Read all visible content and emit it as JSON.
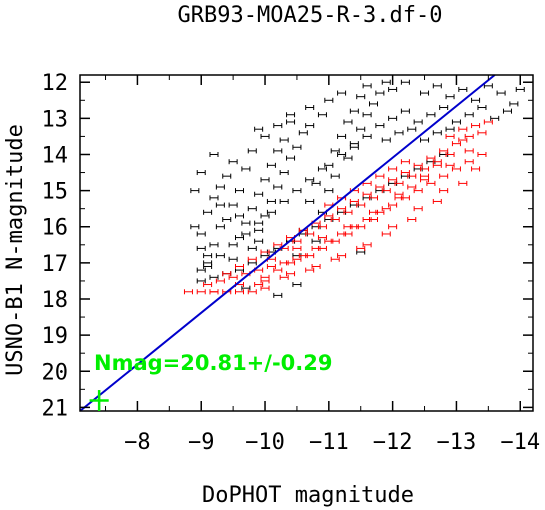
{
  "chart_data": {
    "type": "scatter",
    "title": "GRB93-MOA25-R-3.df-0",
    "xlabel": "DoPHOT magnitude",
    "ylabel": "USNO-B1 N-magnitude",
    "xlim": [
      -7.1,
      -14.2
    ],
    "ylim": [
      21.1,
      11.8
    ],
    "x_ticks": [
      -8,
      -9,
      -10,
      -11,
      -12,
      -13,
      -14
    ],
    "x_tick_labels": [
      "−8",
      "−9",
      "−10",
      "−11",
      "−12",
      "−13",
      "−14"
    ],
    "y_ticks": [
      12,
      13,
      14,
      15,
      16,
      17,
      18,
      19,
      20,
      21
    ],
    "y_tick_labels": [
      "12",
      "13",
      "14",
      "15",
      "16",
      "17",
      "18",
      "19",
      "20",
      "21"
    ],
    "grid": false,
    "colors": {
      "all_stars": "#000000",
      "fit_stars": "#ff0000",
      "fit_line": "#0000cc",
      "result": "#00ee00"
    },
    "fit_line": {
      "offset": 20.81,
      "x": [
        -7.1,
        -13.6
      ],
      "y": [
        21.1,
        11.8
      ]
    },
    "annotation": "Nmag=20.81+/-0.29",
    "result_point": {
      "x": -7.4,
      "y": 20.81,
      "yerr": 0.29,
      "xerr": 0.15
    },
    "series": [
      {
        "color": "#000000",
        "points": [
          [
            -9.0,
            17.2
          ],
          [
            -9.1,
            16.8
          ],
          [
            -9.2,
            16.5
          ],
          [
            -9.0,
            16.2
          ],
          [
            -9.3,
            16.0
          ],
          [
            -9.1,
            15.6
          ],
          [
            -9.4,
            15.8
          ],
          [
            -9.2,
            15.2
          ],
          [
            -9.5,
            15.4
          ],
          [
            -9.3,
            14.9
          ],
          [
            -9.6,
            15.0
          ],
          [
            -9.4,
            14.6
          ],
          [
            -9.7,
            14.4
          ],
          [
            -9.5,
            16.9
          ],
          [
            -9.8,
            16.6
          ],
          [
            -9.6,
            16.3
          ],
          [
            -9.9,
            16.1
          ],
          [
            -9.7,
            15.9
          ],
          [
            -10.0,
            15.7
          ],
          [
            -9.8,
            15.5
          ],
          [
            -10.1,
            15.3
          ],
          [
            -9.9,
            15.1
          ],
          [
            -10.2,
            14.9
          ],
          [
            -10.0,
            14.7
          ],
          [
            -10.3,
            14.5
          ],
          [
            -10.1,
            14.3
          ],
          [
            -10.4,
            14.1
          ],
          [
            -10.2,
            13.9
          ],
          [
            -10.5,
            13.8
          ],
          [
            -10.3,
            13.6
          ],
          [
            -10.6,
            13.4
          ],
          [
            -10.4,
            13.1
          ],
          [
            -10.7,
            13.2
          ],
          [
            -10.5,
            16.8
          ],
          [
            -10.8,
            16.4
          ],
          [
            -10.6,
            16.1
          ],
          [
            -10.9,
            15.6
          ],
          [
            -10.7,
            15.3
          ],
          [
            -11.0,
            15.0
          ],
          [
            -10.8,
            14.8
          ],
          [
            -11.1,
            14.6
          ],
          [
            -11.0,
            14.3
          ],
          [
            -11.3,
            14.1
          ],
          [
            -11.1,
            13.9
          ],
          [
            -11.4,
            13.7
          ],
          [
            -11.2,
            13.5
          ],
          [
            -11.5,
            13.3
          ],
          [
            -11.3,
            13.1
          ],
          [
            -11.6,
            12.9
          ],
          [
            -11.4,
            12.8
          ],
          [
            -11.7,
            12.6
          ],
          [
            -11.5,
            12.4
          ],
          [
            -11.8,
            12.3
          ],
          [
            -11.6,
            12.1
          ],
          [
            -11.9,
            12.0
          ],
          [
            -12.0,
            12.2
          ],
          [
            -12.2,
            12.0
          ],
          [
            -12.5,
            12.3
          ],
          [
            -12.7,
            12.1
          ],
          [
            -12.9,
            12.4
          ],
          [
            -13.1,
            12.2
          ],
          [
            -13.3,
            12.5
          ],
          [
            -13.5,
            12.1
          ],
          [
            -13.7,
            12.3
          ],
          [
            -13.9,
            12.6
          ],
          [
            -14.0,
            12.2
          ],
          [
            -13.8,
            12.8
          ],
          [
            -13.6,
            13.0
          ],
          [
            -13.4,
            12.7
          ],
          [
            -13.2,
            12.9
          ],
          [
            -13.0,
            13.1
          ],
          [
            -12.8,
            12.7
          ],
          [
            -12.6,
            12.9
          ],
          [
            -12.4,
            13.1
          ],
          [
            -12.2,
            12.8
          ],
          [
            -12.0,
            13.0
          ],
          [
            -11.8,
            13.2
          ],
          [
            -11.6,
            13.5
          ],
          [
            -11.4,
            13.8
          ],
          [
            -11.2,
            14.0
          ],
          [
            -10.9,
            14.4
          ],
          [
            -10.7,
            14.7
          ],
          [
            -10.5,
            15.0
          ],
          [
            -10.3,
            15.3
          ],
          [
            -10.1,
            15.6
          ],
          [
            -9.9,
            15.9
          ],
          [
            -9.7,
            16.2
          ],
          [
            -9.5,
            16.5
          ],
          [
            -9.3,
            16.8
          ],
          [
            -9.1,
            17.1
          ],
          [
            -9.0,
            17.5
          ],
          [
            -9.2,
            17.4
          ],
          [
            -9.4,
            17.3
          ],
          [
            -9.6,
            17.2
          ],
          [
            -9.8,
            17.0
          ],
          [
            -10.0,
            16.8
          ],
          [
            -10.2,
            16.6
          ],
          [
            -10.4,
            16.4
          ],
          [
            -10.6,
            16.2
          ],
          [
            -10.8,
            16.0
          ],
          [
            -11.0,
            15.8
          ],
          [
            -11.2,
            15.6
          ],
          [
            -11.4,
            15.4
          ],
          [
            -11.6,
            15.2
          ],
          [
            -11.8,
            15.0
          ],
          [
            -12.0,
            14.8
          ],
          [
            -12.2,
            14.6
          ],
          [
            -12.4,
            14.4
          ],
          [
            -12.6,
            14.2
          ],
          [
            -12.8,
            14.0
          ],
          [
            -9.5,
            14.2
          ],
          [
            -9.8,
            13.9
          ],
          [
            -10.0,
            13.5
          ],
          [
            -10.2,
            13.2
          ],
          [
            -9.9,
            13.3
          ],
          [
            -10.4,
            12.9
          ],
          [
            -10.7,
            12.7
          ],
          [
            -11.0,
            12.5
          ],
          [
            -11.2,
            12.3
          ],
          [
            -10.9,
            12.9
          ],
          [
            -9.2,
            14.0
          ],
          [
            -9.0,
            14.5
          ],
          [
            -8.9,
            15.0
          ],
          [
            -8.9,
            16.0
          ],
          [
            -9.0,
            16.6
          ],
          [
            -9.1,
            17.0
          ],
          [
            -9.3,
            15.4
          ],
          [
            -9.6,
            15.7
          ],
          [
            -9.9,
            16.4
          ],
          [
            -10.1,
            16.7
          ],
          [
            -11.5,
            16.7
          ],
          [
            -10.2,
            17.9
          ],
          [
            -9.7,
            17.7
          ],
          [
            -10.5,
            17.6
          ],
          [
            -11.9,
            13.6
          ],
          [
            -12.1,
            13.4
          ],
          [
            -12.3,
            13.3
          ],
          [
            -12.5,
            13.6
          ],
          [
            -12.7,
            13.4
          ],
          [
            -12.9,
            13.3
          ]
        ]
      },
      {
        "color": "#ff0000",
        "points": [
          [
            -8.8,
            17.8
          ],
          [
            -9.0,
            17.8
          ],
          [
            -9.2,
            17.8
          ],
          [
            -9.4,
            17.8
          ],
          [
            -9.6,
            17.8
          ],
          [
            -9.8,
            17.8
          ],
          [
            -10.0,
            17.7
          ],
          [
            -9.1,
            17.6
          ],
          [
            -9.3,
            17.5
          ],
          [
            -9.5,
            17.4
          ],
          [
            -9.7,
            17.3
          ],
          [
            -9.9,
            17.2
          ],
          [
            -10.1,
            17.1
          ],
          [
            -10.3,
            17.0
          ],
          [
            -10.5,
            16.9
          ],
          [
            -10.7,
            16.8
          ],
          [
            -10.9,
            16.6
          ],
          [
            -11.1,
            16.4
          ],
          [
            -11.3,
            16.2
          ],
          [
            -11.5,
            16.0
          ],
          [
            -11.7,
            15.8
          ],
          [
            -11.9,
            15.5
          ],
          [
            -12.1,
            15.2
          ],
          [
            -12.3,
            14.9
          ],
          [
            -12.5,
            14.6
          ],
          [
            -12.7,
            14.3
          ],
          [
            -12.9,
            14.0
          ],
          [
            -13.1,
            13.6
          ],
          [
            -13.3,
            13.2
          ],
          [
            -13.5,
            13.1
          ],
          [
            -9.4,
            17.3
          ],
          [
            -9.6,
            17.1
          ],
          [
            -9.8,
            16.9
          ],
          [
            -10.0,
            16.7
          ],
          [
            -10.2,
            16.5
          ],
          [
            -10.4,
            16.3
          ],
          [
            -10.6,
            16.1
          ],
          [
            -10.8,
            15.9
          ],
          [
            -11.0,
            15.7
          ],
          [
            -11.2,
            15.5
          ],
          [
            -11.4,
            15.3
          ],
          [
            -11.6,
            15.1
          ],
          [
            -11.8,
            14.9
          ],
          [
            -12.0,
            14.7
          ],
          [
            -12.2,
            14.5
          ],
          [
            -12.4,
            14.3
          ],
          [
            -12.6,
            14.1
          ],
          [
            -12.8,
            13.9
          ],
          [
            -13.0,
            13.7
          ],
          [
            -13.2,
            13.5
          ],
          [
            -10.0,
            17.4
          ],
          [
            -10.2,
            17.2
          ],
          [
            -10.4,
            17.0
          ],
          [
            -10.6,
            16.8
          ],
          [
            -10.8,
            16.6
          ],
          [
            -11.0,
            16.4
          ],
          [
            -11.2,
            16.2
          ],
          [
            -11.4,
            16.0
          ],
          [
            -11.6,
            15.8
          ],
          [
            -11.8,
            15.6
          ],
          [
            -12.0,
            15.4
          ],
          [
            -12.2,
            15.2
          ],
          [
            -12.4,
            15.0
          ],
          [
            -12.6,
            14.8
          ],
          [
            -12.8,
            14.6
          ],
          [
            -13.0,
            14.4
          ],
          [
            -13.2,
            14.2
          ],
          [
            -13.4,
            14.0
          ],
          [
            -12.9,
            13.5
          ],
          [
            -13.1,
            13.3
          ],
          [
            -10.3,
            16.6
          ],
          [
            -10.5,
            16.4
          ],
          [
            -10.7,
            16.2
          ],
          [
            -10.9,
            16.0
          ],
          [
            -11.1,
            15.8
          ],
          [
            -11.3,
            15.6
          ],
          [
            -11.5,
            15.4
          ],
          [
            -11.7,
            15.2
          ],
          [
            -11.9,
            15.0
          ],
          [
            -12.1,
            14.8
          ],
          [
            -12.3,
            14.6
          ],
          [
            -12.5,
            14.4
          ],
          [
            -12.7,
            14.2
          ],
          [
            -11.0,
            15.4
          ],
          [
            -11.2,
            15.2
          ],
          [
            -11.4,
            15.0
          ],
          [
            -11.6,
            14.8
          ],
          [
            -11.8,
            14.6
          ],
          [
            -12.0,
            14.4
          ],
          [
            -12.2,
            14.2
          ],
          [
            -9.2,
            17.8
          ],
          [
            -9.6,
            17.6
          ],
          [
            -10.0,
            17.5
          ],
          [
            -10.4,
            17.3
          ],
          [
            -10.8,
            17.1
          ],
          [
            -11.2,
            16.8
          ],
          [
            -11.6,
            16.5
          ],
          [
            -12.0,
            16.0
          ],
          [
            -12.4,
            15.5
          ],
          [
            -12.8,
            15.0
          ],
          [
            -9.9,
            17.6
          ],
          [
            -10.3,
            17.4
          ],
          [
            -10.7,
            17.2
          ],
          [
            -11.1,
            16.9
          ],
          [
            -11.5,
            16.6
          ],
          [
            -11.9,
            16.2
          ],
          [
            -12.3,
            15.8
          ],
          [
            -12.7,
            15.3
          ],
          [
            -13.1,
            14.8
          ],
          [
            -13.3,
            14.4
          ],
          [
            -10.1,
            16.9
          ],
          [
            -10.5,
            16.6
          ],
          [
            -10.9,
            16.3
          ],
          [
            -11.3,
            16.0
          ],
          [
            -11.7,
            15.6
          ],
          [
            -12.1,
            15.1
          ],
          [
            -12.5,
            14.7
          ],
          [
            -12.9,
            14.3
          ],
          [
            -13.2,
            13.9
          ],
          [
            -13.4,
            13.4
          ]
        ]
      }
    ]
  }
}
